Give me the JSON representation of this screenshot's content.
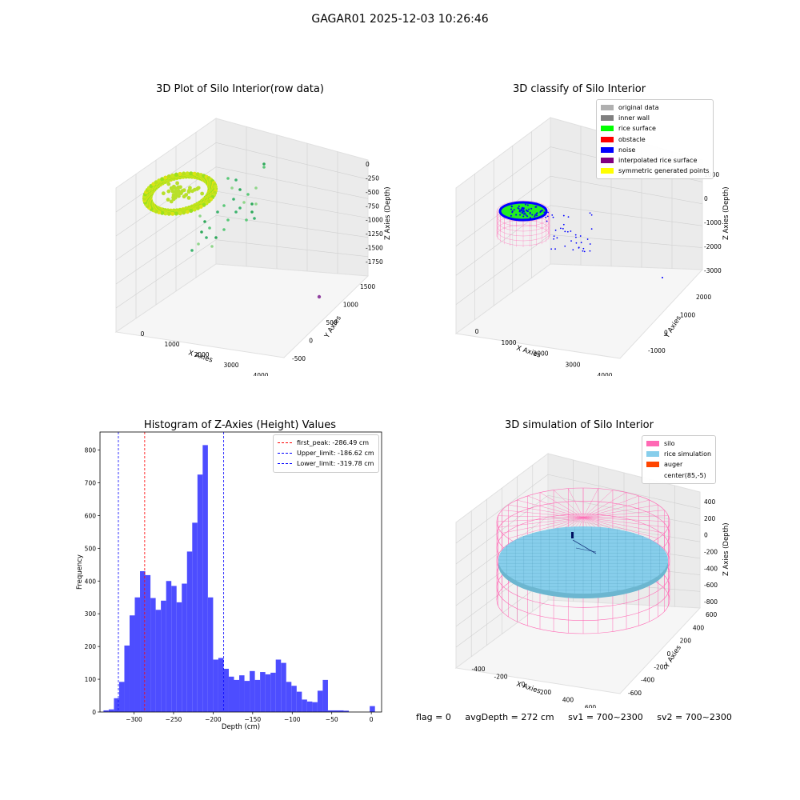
{
  "figure_title": "GAGAR01 2025-12-03 10:26:46",
  "status": {
    "flag": "flag = 0",
    "avg_depth": "avgDepth = 272 cm",
    "sv1": "sv1 = 700~2300",
    "sv2": "sv2 = 700~2300"
  },
  "colors": {
    "histogram_bars": "#4d4dff",
    "first_peak_line": "#ff0000",
    "limit_lines": "#0000ff",
    "silo_mesh": "#ff69b4",
    "rice_simulation": "#87ceeb",
    "auger": "#ff4500"
  },
  "chart_data": [
    {
      "type": "scatter",
      "title": "3D Plot of Silo Interior(row data)",
      "xlabel": "X Axies",
      "ylabel": "Y Axies",
      "zlabel": "Z Axies (Depth)",
      "xticks": [
        "0",
        "1000",
        "2000",
        "3000",
        "4000"
      ],
      "yticks": [
        "-500",
        "0",
        "500",
        "1000",
        "1500"
      ],
      "zticks": [
        "0",
        "-250",
        "-500",
        "-750",
        "-1000",
        "-1250",
        "-1500",
        "-1750"
      ]
    },
    {
      "type": "scatter",
      "title": "3D classify of Silo Interior",
      "xlabel": "X Axies",
      "ylabel": "Y Axies",
      "zlabel": "Z Axies (Depth)",
      "xticks": [
        "0",
        "1000",
        "2000",
        "3000",
        "4000"
      ],
      "yticks": [
        "-1000",
        "0",
        "1000",
        "2000"
      ],
      "zticks": [
        "1000",
        "0",
        "-1000",
        "-2000",
        "-3000"
      ],
      "legend": [
        {
          "label": "original data",
          "color": "#b0b0b0"
        },
        {
          "label": "inner wall",
          "color": "#808080"
        },
        {
          "label": "rice surface",
          "color": "#00ff00"
        },
        {
          "label": "obstacle",
          "color": "#ff0000"
        },
        {
          "label": "noise",
          "color": "#0000ff"
        },
        {
          "label": "interpolated rice surface",
          "color": "#800080"
        },
        {
          "label": "symmetric generated points",
          "color": "#ffff00"
        }
      ]
    },
    {
      "type": "bar",
      "title": "Histogram of Z-Axies (Height) Values",
      "xlabel": "Depth (cm)",
      "ylabel": "Frequency",
      "xlim": [
        -343,
        13
      ],
      "ylim": [
        0,
        855
      ],
      "bin_width": 6.6,
      "x": [
        -335.3,
        -328.7,
        -322.1,
        -315.5,
        -308.9,
        -302.3,
        -295.7,
        -289.1,
        -282.5,
        -275.9,
        -269.3,
        -262.7,
        -256.1,
        -249.5,
        -242.9,
        -236.3,
        -229.7,
        -223.1,
        -216.5,
        -209.9,
        -203.3,
        -196.7,
        -190.1,
        -183.5,
        -176.9,
        -170.3,
        -163.7,
        -157.1,
        -150.5,
        -143.9,
        -137.3,
        -130.7,
        -124.1,
        -117.5,
        -110.9,
        -104.3,
        -97.7,
        -91.1,
        -84.5,
        -77.9,
        -71.3,
        -64.7,
        -58.1,
        -51.5,
        -44.9,
        -38.3,
        -31.7,
        -25.1,
        -18.5,
        -11.9,
        -5.3,
        1.3
      ],
      "values": [
        5,
        8,
        42,
        92,
        203,
        295,
        350,
        430,
        418,
        348,
        312,
        340,
        400,
        385,
        335,
        392,
        490,
        578,
        725,
        815,
        350,
        160,
        165,
        132,
        108,
        98,
        112,
        95,
        125,
        98,
        122,
        115,
        120,
        160,
        150,
        92,
        80,
        62,
        38,
        32,
        30,
        65,
        98,
        5,
        5,
        5,
        4,
        0,
        0,
        0,
        0,
        18
      ],
      "xticks": [
        -300,
        -250,
        -200,
        -150,
        -100,
        -50,
        0
      ],
      "yticks": [
        0,
        100,
        200,
        300,
        400,
        500,
        600,
        700,
        800
      ],
      "lines": [
        {
          "label": "first_peak: -286.49 cm",
          "x": -286.49,
          "color": "#ff0000"
        },
        {
          "label": "Upper_limit: -186.62 cm",
          "x": -186.62,
          "color": "#0000ff"
        },
        {
          "label": "Lower_limit: -319.78 cm",
          "x": -319.78,
          "color": "#0000ff"
        }
      ],
      "legend_position": "upper right"
    },
    {
      "type": "surface",
      "title": "3D simulation of Silo Interior",
      "xlabel": "X Axies",
      "ylabel": "Y Axies",
      "zlabel": "Z Axies (Depth)",
      "xticks": [
        "-400",
        "-200",
        "0",
        "200",
        "400",
        "600"
      ],
      "yticks": [
        "-600",
        "-400",
        "-200",
        "0",
        "200",
        "400",
        "600"
      ],
      "zticks": [
        "400",
        "200",
        "0",
        "-200",
        "-400",
        "-600",
        "-800"
      ],
      "legend": [
        {
          "label": "silo",
          "color": "#ff69b4"
        },
        {
          "label": "rice simulation",
          "color": "#87ceeb"
        },
        {
          "label": "auger",
          "color": "#ff4500"
        },
        {
          "label": "center(85,-5)",
          "color": "#ffffff"
        }
      ]
    }
  ]
}
